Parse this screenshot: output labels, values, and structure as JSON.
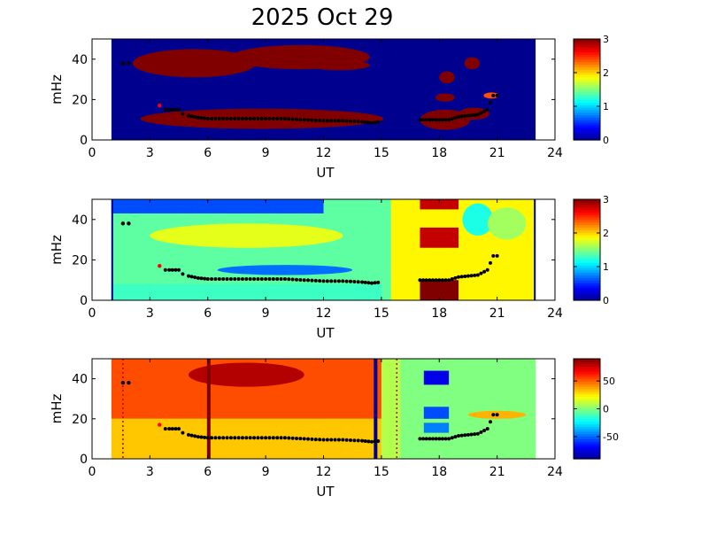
{
  "figure": {
    "title": "2025 Oct 29"
  },
  "colors": {
    "jet": [
      "#00008f",
      "#0000ff",
      "#0080ff",
      "#00ffff",
      "#80ff80",
      "#ffff00",
      "#ff8000",
      "#ff0000",
      "#800000"
    ],
    "panel_bg": "#ffffff",
    "marker": "#000000",
    "red_marker": "#ff0000"
  },
  "chart_data": [
    {
      "type": "heatmap",
      "name": "panel-1",
      "xlabel": "UT",
      "ylabel": "mHz",
      "xlim": [
        0,
        24
      ],
      "ylim": [
        0,
        50
      ],
      "xticks": [
        "0",
        "3",
        "6",
        "9",
        "12",
        "15",
        "18",
        "21",
        "24"
      ],
      "yticks": [
        "0",
        "20",
        "40"
      ],
      "data_range_ut": [
        1,
        23
      ],
      "background_value": 0,
      "colorbar": {
        "min": 0,
        "max": 3,
        "ticks": [
          "0",
          "1",
          "2",
          "3"
        ]
      },
      "regions": [
        {
          "kind": "ellipse",
          "cx": 5.3,
          "cy": 38,
          "rx": 3.2,
          "ry": 7,
          "value": 3
        },
        {
          "kind": "ellipse",
          "cx": 10.8,
          "cy": 41,
          "rx": 3.6,
          "ry": 6,
          "value": 3
        },
        {
          "kind": "ellipse",
          "cx": 12.8,
          "cy": 37,
          "rx": 1.6,
          "ry": 2.5,
          "value": 3
        },
        {
          "kind": "ellipse",
          "cx": 8.8,
          "cy": 10.5,
          "rx": 6.3,
          "ry": 5,
          "value": 3
        },
        {
          "kind": "ellipse",
          "cx": 18.3,
          "cy": 10,
          "rx": 1.3,
          "ry": 5,
          "value": 3
        },
        {
          "kind": "ellipse",
          "cx": 19.8,
          "cy": 13,
          "rx": 0.8,
          "ry": 3,
          "value": 3
        },
        {
          "kind": "ellipse",
          "cx": 18.4,
          "cy": 31,
          "rx": 0.4,
          "ry": 3,
          "value": 3
        },
        {
          "kind": "ellipse",
          "cx": 18.3,
          "cy": 21,
          "rx": 0.5,
          "ry": 2,
          "value": 3
        },
        {
          "kind": "ellipse",
          "cx": 19.7,
          "cy": 38,
          "rx": 0.4,
          "ry": 3,
          "value": 3
        },
        {
          "kind": "ellipse",
          "cx": 20.7,
          "cy": 22,
          "rx": 0.4,
          "ry": 1.5,
          "value": 2.4
        }
      ],
      "markers": {
        "pattern": "trace"
      }
    },
    {
      "type": "heatmap",
      "name": "panel-2",
      "xlabel": "UT",
      "ylabel": "mHz",
      "xlim": [
        0,
        24
      ],
      "ylim": [
        0,
        50
      ],
      "xticks": [
        "0",
        "3",
        "6",
        "9",
        "12",
        "15",
        "18",
        "21",
        "24"
      ],
      "yticks": [
        "0",
        "20",
        "40"
      ],
      "data_range_ut": [
        1,
        23
      ],
      "background_value": 1.4,
      "colorbar": {
        "min": 0,
        "max": 3,
        "ticks": [
          "0",
          "1",
          "2",
          "3"
        ]
      },
      "vlines": [
        {
          "x": 1,
          "value": 0
        },
        {
          "x": 23,
          "value": 0
        }
      ],
      "regions": [
        {
          "kind": "rect",
          "x0": 1,
          "x1": 12,
          "y0": 43,
          "y1": 50,
          "value": 0.6
        },
        {
          "kind": "rect",
          "x0": 1,
          "x1": 15,
          "y0": 0,
          "y1": 8,
          "value": 1.3
        },
        {
          "kind": "ellipse",
          "cx": 10,
          "cy": 15,
          "rx": 3.5,
          "ry": 2.5,
          "value": 0.7
        },
        {
          "kind": "ellipse",
          "cx": 8,
          "cy": 32,
          "rx": 5,
          "ry": 6,
          "value": 1.8
        },
        {
          "kind": "rect",
          "x0": 15.5,
          "x1": 23,
          "y0": 0,
          "y1": 50,
          "value": 1.9
        },
        {
          "kind": "rect",
          "x0": 17,
          "x1": 19,
          "y0": 45,
          "y1": 50,
          "value": 2.8
        },
        {
          "kind": "rect",
          "x0": 17,
          "x1": 19,
          "y0": 26,
          "y1": 36,
          "value": 2.8
        },
        {
          "kind": "rect",
          "x0": 17,
          "x1": 19,
          "y0": 0,
          "y1": 10,
          "value": 3
        },
        {
          "kind": "ellipse",
          "cx": 20,
          "cy": 40,
          "rx": 0.8,
          "ry": 8,
          "value": 1.2
        },
        {
          "kind": "ellipse",
          "cx": 21.5,
          "cy": 38,
          "rx": 1,
          "ry": 8,
          "value": 1.6
        }
      ],
      "markers": {
        "pattern": "trace"
      }
    },
    {
      "type": "heatmap",
      "name": "panel-3",
      "xlabel": "UT",
      "ylabel": "mHz",
      "xlim": [
        0,
        24
      ],
      "ylim": [
        0,
        50
      ],
      "xticks": [
        "0",
        "3",
        "6",
        "9",
        "12",
        "15",
        "18",
        "21",
        "24"
      ],
      "yticks": [
        "0",
        "20",
        "40"
      ],
      "data_range_ut": [
        1,
        23
      ],
      "background_value": 0.55,
      "colorbar": {
        "min": -90,
        "max": 90,
        "ticks": [
          "-50",
          "0",
          "50"
        ],
        "tick_values": [
          -50,
          0,
          50
        ]
      },
      "vlines": [
        {
          "x": 6.05,
          "value": 1.0
        },
        {
          "x": 14.7,
          "value": 0.0
        }
      ],
      "dotted_vlines": [
        1.6,
        15.8
      ],
      "regions": [
        {
          "kind": "rect",
          "x0": 1,
          "x1": 15,
          "y0": 20,
          "y1": 50,
          "value": 0.8
        },
        {
          "kind": "rect",
          "x0": 1,
          "x1": 15,
          "y0": 0,
          "y1": 20,
          "value": 0.68
        },
        {
          "kind": "ellipse",
          "cx": 8,
          "cy": 42,
          "rx": 3,
          "ry": 6,
          "value": 0.95
        },
        {
          "kind": "rect",
          "x0": 16,
          "x1": 23,
          "y0": 0,
          "y1": 50,
          "value": 0.5
        },
        {
          "kind": "rect",
          "x0": 17.2,
          "x1": 18.5,
          "y0": 37,
          "y1": 44,
          "value": 0.1
        },
        {
          "kind": "rect",
          "x0": 17.2,
          "x1": 18.5,
          "y0": 20,
          "y1": 26,
          "value": 0.2
        },
        {
          "kind": "rect",
          "x0": 17.2,
          "x1": 18.5,
          "y0": 13,
          "y1": 18,
          "value": 0.25
        },
        {
          "kind": "ellipse",
          "cx": 21,
          "cy": 22,
          "rx": 1.5,
          "ry": 2,
          "value": 0.7
        }
      ],
      "markers": {
        "pattern": "trace"
      }
    }
  ],
  "trace_points": {
    "upper": [
      [
        1.6,
        38
      ],
      [
        1.9,
        38
      ]
    ],
    "red": [
      [
        3.5,
        17
      ]
    ],
    "lower": [
      [
        3.8,
        15
      ],
      [
        4.0,
        15
      ],
      [
        4.5,
        15
      ],
      [
        4.7,
        13
      ],
      [
        5.0,
        12
      ],
      [
        5.5,
        11
      ],
      [
        6,
        10.5
      ],
      [
        7,
        10.5
      ],
      [
        8,
        10.5
      ],
      [
        9,
        10.5
      ],
      [
        10,
        10.5
      ],
      [
        11,
        10
      ],
      [
        12,
        9.5
      ],
      [
        13,
        9.5
      ],
      [
        14,
        9
      ],
      [
        14.5,
        8.5
      ],
      [
        15,
        9
      ],
      [
        17,
        10
      ],
      [
        17.5,
        10
      ],
      [
        18,
        10
      ],
      [
        18.5,
        10
      ],
      [
        19,
        11.5
      ],
      [
        19.5,
        12
      ],
      [
        20,
        12.5
      ],
      [
        20.5,
        15
      ],
      [
        20.8,
        22
      ],
      [
        21.0,
        22
      ]
    ]
  }
}
